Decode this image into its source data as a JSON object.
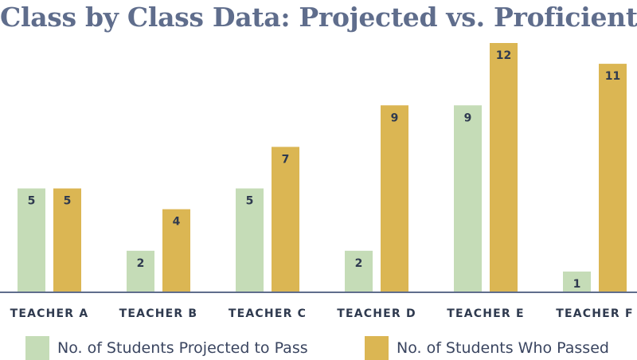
{
  "chart_data": {
    "type": "bar",
    "title": "Class by Class Data: Projected vs. Proficient",
    "categories": [
      "TEACHER A",
      "TEACHER B",
      "TEACHER C",
      "TEACHER D",
      "TEACHER E",
      "TEACHER F"
    ],
    "series": [
      {
        "name": "No. of Students Projected to Pass",
        "values": [
          5,
          2,
          5,
          2,
          9,
          1
        ],
        "color": "#c5dcb7"
      },
      {
        "name": "No. of Students Who Passed",
        "values": [
          5,
          4,
          7,
          9,
          12,
          11
        ],
        "color": "#dbb653"
      }
    ],
    "ylim": [
      0,
      12
    ],
    "grid": false,
    "legend_position": "bottom",
    "axis_color": "#5f6d8c",
    "label_color": "#2f3a4f"
  }
}
